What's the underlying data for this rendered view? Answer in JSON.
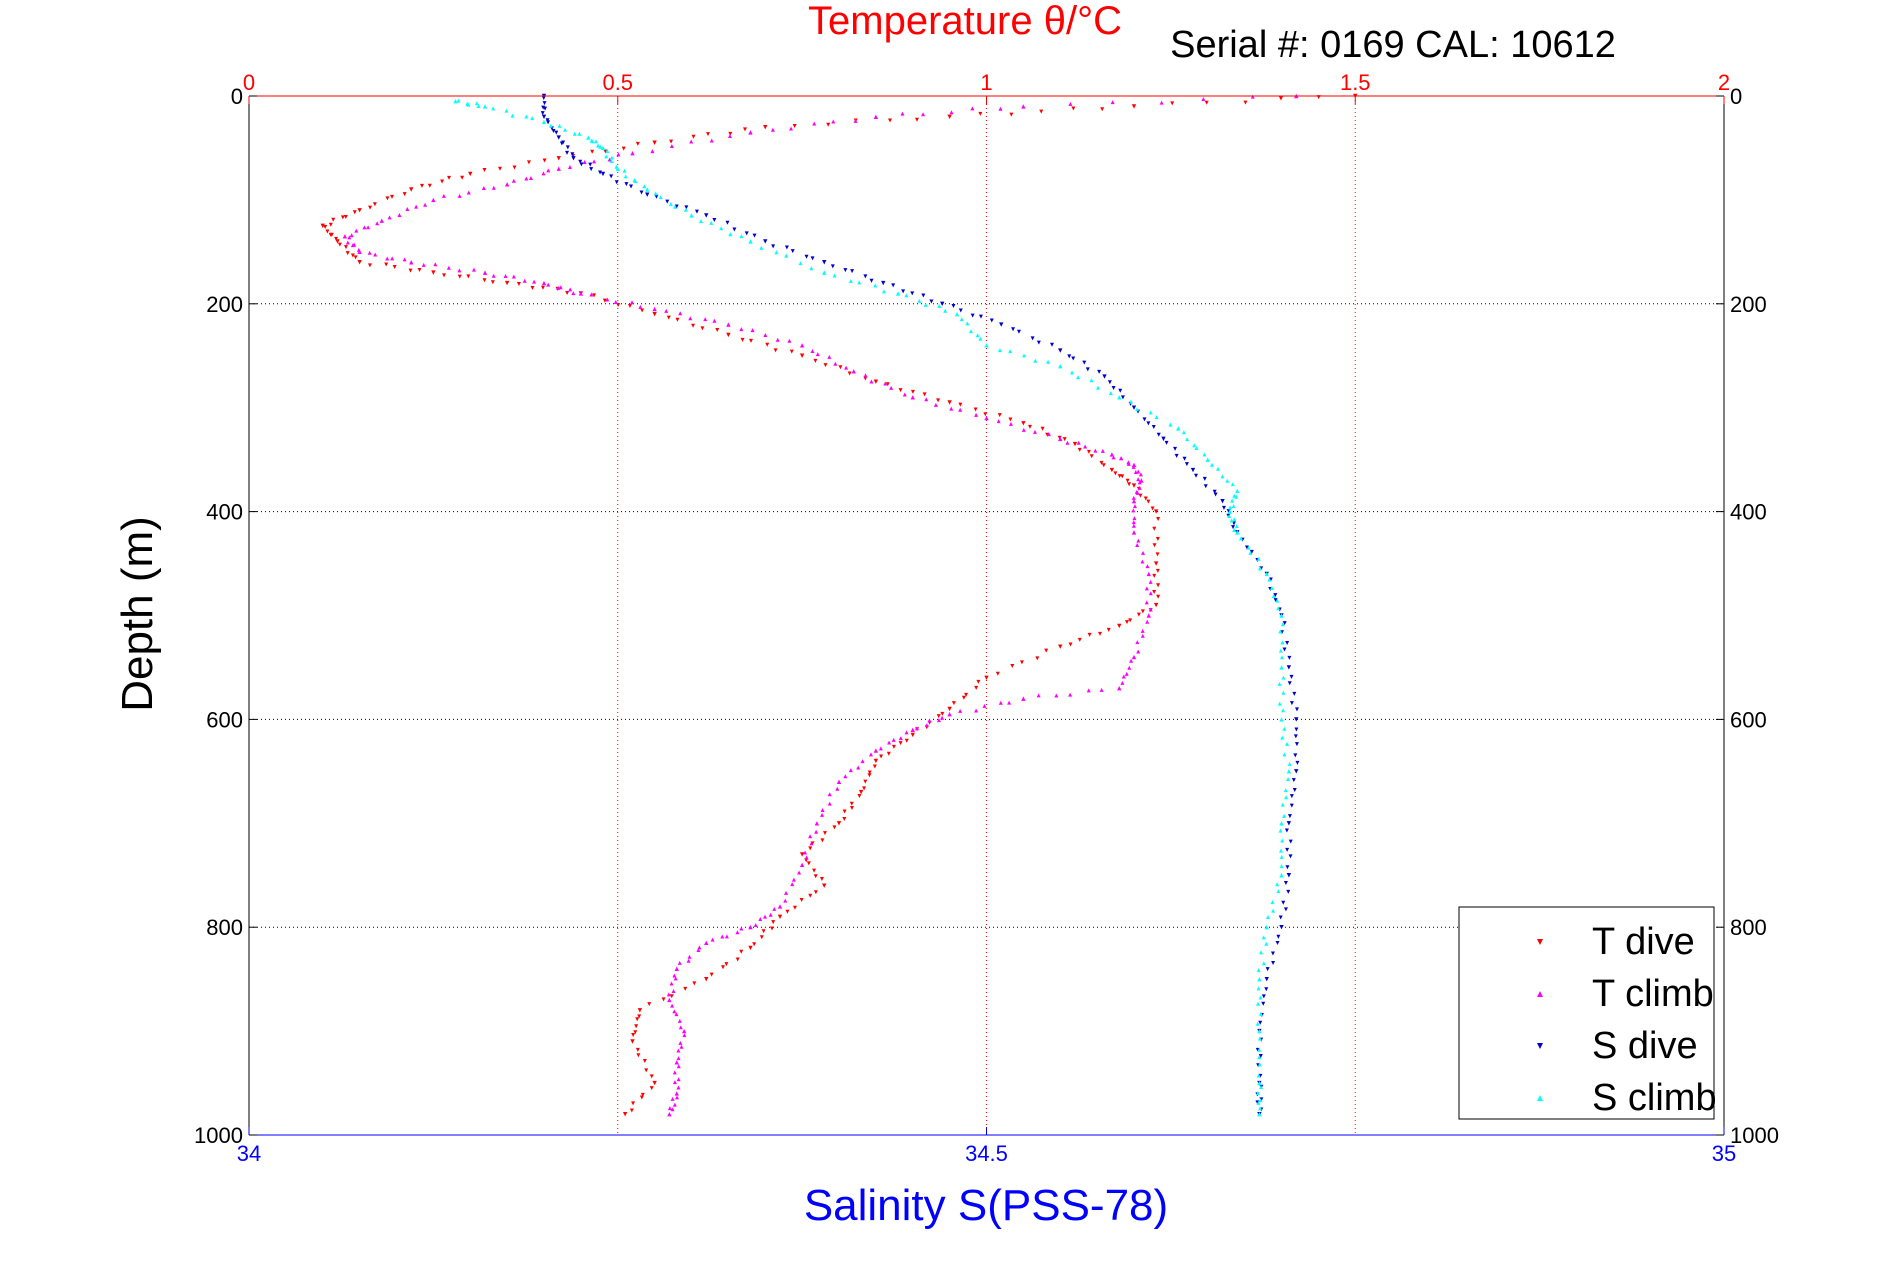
{
  "chart_data": {
    "type": "scatter",
    "title": "Temperature θ/°C",
    "subtitle": "Serial #: 0169 CAL: 10612",
    "ylabel": "Depth (m)",
    "xlabel_bottom": "Salinity S(PSS-78)",
    "ylim": [
      0,
      1000
    ],
    "y_reversed": true,
    "x_top_lim": [
      0,
      2
    ],
    "x_bottom_lim": [
      34,
      35
    ],
    "y_ticks": [
      "0",
      "200",
      "400",
      "600",
      "800",
      "1000"
    ],
    "x_top_ticks": [
      "0",
      "0.5",
      "1",
      "1.5",
      "2"
    ],
    "x_bottom_ticks": [
      "34",
      "34.5",
      "35"
    ],
    "grid": true,
    "legend_position": "bottom-right",
    "colors": {
      "temperature_axis": "#ff0000",
      "salinity_axis": "#0000ff",
      "t_dive": "#ff0000",
      "t_climb": "#ff00ff",
      "s_dive": "#0000cc",
      "s_climb": "#00ffff"
    },
    "series": [
      {
        "name": "T dive",
        "axis": "temperature",
        "marker": "triangle-down",
        "points": [
          [
            1.5,
            0
          ],
          [
            1.2,
            10
          ],
          [
            0.95,
            20
          ],
          [
            0.7,
            30
          ],
          [
            0.55,
            45
          ],
          [
            0.42,
            60
          ],
          [
            0.3,
            75
          ],
          [
            0.22,
            90
          ],
          [
            0.15,
            110
          ],
          [
            0.1,
            125
          ],
          [
            0.12,
            140
          ],
          [
            0.15,
            160
          ],
          [
            0.25,
            170
          ],
          [
            0.35,
            180
          ],
          [
            0.45,
            190
          ],
          [
            0.55,
            210
          ],
          [
            0.65,
            230
          ],
          [
            0.75,
            250
          ],
          [
            0.85,
            275
          ],
          [
            0.95,
            295
          ],
          [
            1.05,
            315
          ],
          [
            1.12,
            335
          ],
          [
            1.17,
            360
          ],
          [
            1.2,
            375
          ],
          [
            1.23,
            400
          ],
          [
            1.23,
            450
          ],
          [
            1.23,
            490
          ],
          [
            1.18,
            510
          ],
          [
            1.1,
            530
          ],
          [
            1.0,
            560
          ],
          [
            0.95,
            590
          ],
          [
            0.9,
            615
          ],
          [
            0.85,
            640
          ],
          [
            0.83,
            670
          ],
          [
            0.8,
            700
          ],
          [
            0.75,
            730
          ],
          [
            0.78,
            760
          ],
          [
            0.72,
            790
          ],
          [
            0.68,
            820
          ],
          [
            0.62,
            850
          ],
          [
            0.53,
            880
          ],
          [
            0.52,
            910
          ],
          [
            0.55,
            950
          ],
          [
            0.51,
            980
          ]
        ]
      },
      {
        "name": "T climb",
        "axis": "temperature",
        "marker": "triangle-up",
        "points": [
          [
            1.42,
            0
          ],
          [
            1.05,
            10
          ],
          [
            0.85,
            20
          ],
          [
            0.68,
            35
          ],
          [
            0.52,
            55
          ],
          [
            0.42,
            70
          ],
          [
            0.35,
            85
          ],
          [
            0.25,
            100
          ],
          [
            0.18,
            120
          ],
          [
            0.13,
            135
          ],
          [
            0.15,
            150
          ],
          [
            0.22,
            160
          ],
          [
            0.32,
            170
          ],
          [
            0.4,
            180
          ],
          [
            0.45,
            190
          ],
          [
            0.55,
            205
          ],
          [
            0.65,
            220
          ],
          [
            0.75,
            240
          ],
          [
            0.82,
            265
          ],
          [
            0.9,
            290
          ],
          [
            1.0,
            310
          ],
          [
            1.1,
            330
          ],
          [
            1.17,
            345
          ],
          [
            1.2,
            355
          ],
          [
            1.21,
            370
          ],
          [
            1.2,
            390
          ],
          [
            1.2,
            420
          ],
          [
            1.22,
            460
          ],
          [
            1.22,
            500
          ],
          [
            1.2,
            540
          ],
          [
            1.18,
            570
          ],
          [
            1.05,
            580
          ],
          [
            0.95,
            595
          ],
          [
            0.9,
            610
          ],
          [
            0.85,
            630
          ],
          [
            0.8,
            660
          ],
          [
            0.77,
            700
          ],
          [
            0.75,
            740
          ],
          [
            0.72,
            780
          ],
          [
            0.68,
            800
          ],
          [
            0.62,
            815
          ],
          [
            0.58,
            840
          ],
          [
            0.57,
            870
          ],
          [
            0.59,
            900
          ],
          [
            0.58,
            930
          ],
          [
            0.58,
            960
          ],
          [
            0.57,
            980
          ]
        ]
      },
      {
        "name": "S dive",
        "axis": "salinity",
        "marker": "triangle-down",
        "points": [
          [
            34.2,
            0
          ],
          [
            34.2,
            20
          ],
          [
            34.21,
            40
          ],
          [
            34.22,
            60
          ],
          [
            34.24,
            75
          ],
          [
            34.27,
            95
          ],
          [
            34.31,
            115
          ],
          [
            34.35,
            140
          ],
          [
            34.39,
            160
          ],
          [
            34.43,
            180
          ],
          [
            34.47,
            200
          ],
          [
            34.51,
            220
          ],
          [
            34.55,
            245
          ],
          [
            34.58,
            270
          ],
          [
            34.6,
            300
          ],
          [
            34.62,
            330
          ],
          [
            34.64,
            360
          ],
          [
            34.66,
            390
          ],
          [
            34.67,
            420
          ],
          [
            34.69,
            460
          ],
          [
            34.7,
            500
          ],
          [
            34.705,
            550
          ],
          [
            34.71,
            600
          ],
          [
            34.71,
            650
          ],
          [
            34.705,
            700
          ],
          [
            34.705,
            750
          ],
          [
            34.7,
            800
          ],
          [
            34.69,
            850
          ],
          [
            34.685,
            900
          ],
          [
            34.685,
            950
          ],
          [
            34.685,
            980
          ]
        ]
      },
      {
        "name": "S climb",
        "axis": "salinity",
        "marker": "triangle-up",
        "points": [
          [
            34.14,
            5
          ],
          [
            34.16,
            10
          ],
          [
            34.2,
            25
          ],
          [
            34.23,
            40
          ],
          [
            34.24,
            50
          ],
          [
            34.25,
            70
          ],
          [
            34.27,
            90
          ],
          [
            34.3,
            115
          ],
          [
            34.34,
            140
          ],
          [
            34.39,
            170
          ],
          [
            34.44,
            190
          ],
          [
            34.48,
            210
          ],
          [
            34.5,
            240
          ],
          [
            34.55,
            260
          ],
          [
            34.59,
            290
          ],
          [
            34.63,
            320
          ],
          [
            34.65,
            350
          ],
          [
            34.67,
            380
          ],
          [
            34.665,
            400
          ],
          [
            34.67,
            420
          ],
          [
            34.69,
            460
          ],
          [
            34.7,
            500
          ],
          [
            34.7,
            550
          ],
          [
            34.7,
            600
          ],
          [
            34.705,
            650
          ],
          [
            34.7,
            700
          ],
          [
            34.7,
            750
          ],
          [
            34.69,
            800
          ],
          [
            34.685,
            850
          ],
          [
            34.685,
            900
          ],
          [
            34.685,
            950
          ],
          [
            34.685,
            980
          ]
        ]
      }
    ]
  }
}
